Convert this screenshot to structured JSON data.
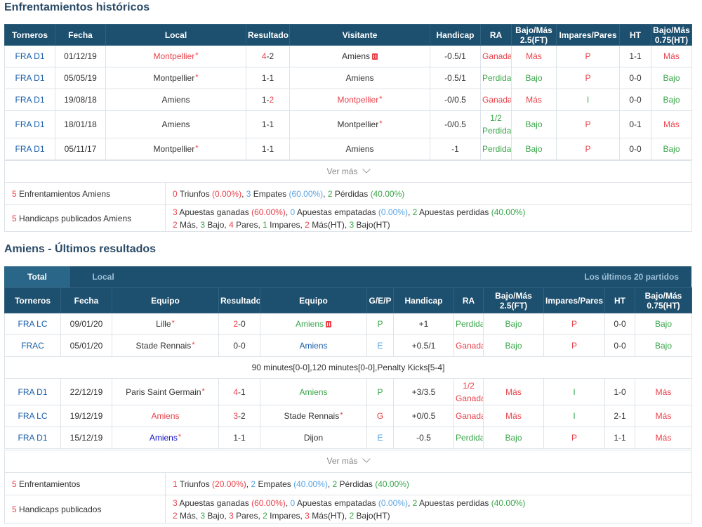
{
  "h2h": {
    "title": "Enfrentamientos históricos",
    "headers": [
      "Torneros",
      "Fecha",
      "Local",
      "Resultado",
      "Visitante",
      "Handicap",
      "RA",
      "Bajo/Más 2.5(FT)",
      "Impares/Pares",
      "HT",
      "Bajo/Más 0.75(HT)"
    ],
    "rows": [
      {
        "league": "FRA D1",
        "date": "01/12/19",
        "home": "Montpellier",
        "res_a": "4",
        "res_sep": "-",
        "res_b": "2",
        "away": "Amiens",
        "handicap": "-0.5/1",
        "ra": "Ganada",
        "ou": "Más",
        "oe": "P",
        "ht": "1-1",
        "ou_ht": "Más"
      },
      {
        "league": "FRA D1",
        "date": "05/05/19",
        "home": "Montpellier",
        "res_a": "1",
        "res_sep": "-",
        "res_b": "1",
        "away": "Amiens",
        "handicap": "-0.5/1",
        "ra": "Perdida",
        "ou": "Bajo",
        "oe": "P",
        "ht": "0-0",
        "ou_ht": "Bajo"
      },
      {
        "league": "FRA D1",
        "date": "19/08/18",
        "home": "Amiens",
        "res_a": "1",
        "res_sep": "-",
        "res_b": "2",
        "away": "Montpellier",
        "handicap": "-0/0.5",
        "ra": "Ganada",
        "ou": "Más",
        "oe": "I",
        "ht": "0-0",
        "ou_ht": "Bajo"
      },
      {
        "league": "FRA D1",
        "date": "18/01/18",
        "home": "Amiens",
        "res_a": "1",
        "res_sep": "-",
        "res_b": "1",
        "away": "Montpellier",
        "handicap": "-0/0.5",
        "ra_1": "1/2",
        "ra_2": "Perdida",
        "ou": "Bajo",
        "oe": "P",
        "ht": "0-1",
        "ou_ht": "Más"
      },
      {
        "league": "FRA D1",
        "date": "05/11/17",
        "home": "Montpellier",
        "res_a": "1",
        "res_sep": "-",
        "res_b": "1",
        "away": "Amiens",
        "handicap": "-1",
        "ra": "Perdida",
        "ou": "Bajo",
        "oe": "P",
        "ht": "0-0",
        "ou_ht": "Bajo"
      }
    ],
    "more": "Ver más",
    "summary1_label": "Enfrentamientos Amiens",
    "summary1_count": "5",
    "s1": {
      "w": "0",
      "w_t": " Triunfos ",
      "w_p": "(0.00%)",
      "d": "3",
      "d_t": " Empates ",
      "d_p": "(60.00%)",
      "l": "2",
      "l_t": " Pérdidas ",
      "l_p": "(40.00%)"
    },
    "summary2_count": "5",
    "summary2_label": "Handicaps publicados Amiens",
    "s2": {
      "w": "3",
      "w_t": " Apuestas ganadas ",
      "w_p": "(60.00%)",
      "d": "0",
      "d_t": " Apuestas empatadas ",
      "d_p": "(0.00%)",
      "l": "2",
      "l_t": " Apuestas perdidas ",
      "l_p": "(40.00%)",
      "mas": "2",
      "mas_t": " Más, ",
      "bajo": "3",
      "bajo_t": " Bajo, ",
      "pares": "4",
      "pares_t": " Pares, ",
      "imp": "1",
      "imp_t": " Impares, ",
      "masht": "2",
      "masht_t": " Más(HT), ",
      "bajoht": "3",
      "bajoht_t": " Bajo(HT)"
    }
  },
  "recent": {
    "title": "Amiens - Últimos resultados",
    "tab_total": "Total",
    "tab_local": "Local",
    "tab_right": "Los últimos 20 partidos",
    "headers": [
      "Torneros",
      "Fecha",
      "Equipo",
      "Resultado",
      "Equipo",
      "G/E/P",
      "Handicap",
      "RA",
      "Bajo/Más 2.5(FT)",
      "Impares/Pares",
      "HT",
      "Bajo/Más 0.75(HT)"
    ],
    "rows": [
      {
        "league": "FRA LC",
        "date": "09/01/20",
        "home": "Lille",
        "res_a": "2",
        "res_sep": "-",
        "res_b": "0",
        "away": "Amiens",
        "gep": "P",
        "handicap": "+1",
        "ra": "Perdida",
        "ou": "Bajo",
        "oe": "P",
        "ht": "0-0",
        "ou_ht": "Bajo"
      },
      {
        "league": "FRAC",
        "date": "05/01/20",
        "home": "Stade Rennais",
        "res_a": "0",
        "res_sep": "-",
        "res_b": "0",
        "away": "Amiens",
        "gep": "E",
        "handicap": "+0.5/1",
        "ra": "Ganada",
        "ou": "Bajo",
        "oe": "P",
        "ht": "0-0",
        "ou_ht": "Bajo"
      },
      {
        "league": "FRA D1",
        "date": "22/12/19",
        "home": "Paris Saint Germain",
        "res_a": "4",
        "res_sep": "-",
        "res_b": "1",
        "away": "Amiens",
        "gep": "P",
        "handicap": "+3/3.5",
        "ra_1": "1/2",
        "ra_2": "Ganada",
        "ou": "Más",
        "oe": "I",
        "ht": "1-0",
        "ou_ht": "Más"
      },
      {
        "league": "FRA LC",
        "date": "19/12/19",
        "home": "Amiens",
        "res_a": "3",
        "res_sep": "-",
        "res_b": "2",
        "away": "Stade Rennais",
        "gep": "G",
        "handicap": "+0/0.5",
        "ra": "Ganada",
        "ou": "Más",
        "oe": "I",
        "ht": "2-1",
        "ou_ht": "Más"
      },
      {
        "league": "FRA D1",
        "date": "15/12/19",
        "home": "Amiens",
        "res_a": "1",
        "res_sep": "-",
        "res_b": "1",
        "away": "Dijon",
        "gep": "E",
        "handicap": "-0.5",
        "ra": "Perdida",
        "ou": "Bajo",
        "oe": "P",
        "ht": "1-1",
        "ou_ht": "Más"
      }
    ],
    "extra_note": "90 minutes[0-0],120 minutes[0-0],Penalty Kicks[5-4]",
    "more": "Ver más",
    "summary1_count": "5",
    "summary1_label": "Enfrentamientos",
    "s1": {
      "w": "1",
      "w_t": " Triunfos ",
      "w_p": "(20.00%)",
      "d": "2",
      "d_t": " Empates ",
      "d_p": "(40.00%)",
      "l": "2",
      "l_t": " Pérdidas ",
      "l_p": "(40.00%)"
    },
    "summary2_count": "5",
    "summary2_label": "Handicaps publicados",
    "s2": {
      "w": "3",
      "w_t": " Apuestas ganadas ",
      "w_p": "(60.00%)",
      "d": "0",
      "d_t": " Apuestas empatadas ",
      "d_p": "(0.00%)",
      "l": "2",
      "l_t": " Apuestas perdidas ",
      "l_p": "(40.00%)",
      "mas": "2",
      "mas_t": " Más, ",
      "bajo": "3",
      "bajo_t": " Bajo, ",
      "pares": "3",
      "pares_t": " Pares, ",
      "imp": "2",
      "imp_t": " Impares, ",
      "masht": "3",
      "masht_t": " Más(HT), ",
      "bajoht": "2",
      "bajoht_t": " Bajo(HT)"
    }
  },
  "star": "*"
}
